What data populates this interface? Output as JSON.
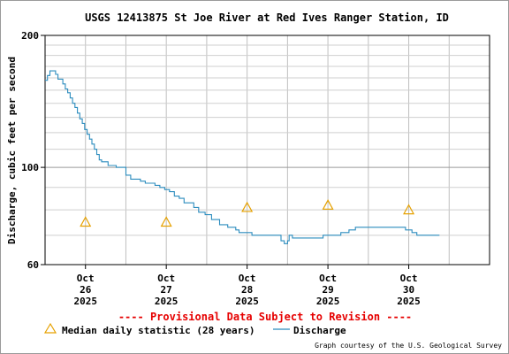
{
  "chart_data": {
    "type": "line",
    "title": "USGS 12413875 St Joe River at Red Ives Ranger Station, ID",
    "ylabel": "Discharge, cubic feet per second",
    "y_scale": "log",
    "ylim": [
      60,
      200
    ],
    "y_ticks": [
      {
        "value": 60,
        "label": "60"
      },
      {
        "value": 100,
        "label": "100"
      },
      {
        "value": 200,
        "label": "200"
      }
    ],
    "y_minor": [
      70,
      80,
      90,
      110,
      120,
      130,
      140,
      150,
      160,
      170,
      180,
      190
    ],
    "xlim": [
      25.5,
      31.0
    ],
    "x_ticks": [
      {
        "value": 26,
        "lines": [
          "Oct",
          "26",
          "2025"
        ]
      },
      {
        "value": 27,
        "lines": [
          "Oct",
          "27",
          "2025"
        ]
      },
      {
        "value": 28,
        "lines": [
          "Oct",
          "28",
          "2025"
        ]
      },
      {
        "value": 29,
        "lines": [
          "Oct",
          "29",
          "2025"
        ]
      },
      {
        "value": 30,
        "lines": [
          "Oct",
          "30",
          "2025"
        ]
      }
    ],
    "x_grid": [
      26,
      26.5,
      27,
      27.5,
      28,
      28.5,
      29,
      29.5,
      30,
      30.5
    ],
    "series": [
      {
        "name": "Discharge",
        "color": "#2b8cbe",
        "points": [
          [
            25.5,
            158
          ],
          [
            25.53,
            162
          ],
          [
            25.56,
            166
          ],
          [
            25.6,
            166
          ],
          [
            25.63,
            163
          ],
          [
            25.66,
            159
          ],
          [
            25.69,
            159
          ],
          [
            25.72,
            155
          ],
          [
            25.75,
            151
          ],
          [
            25.78,
            148
          ],
          [
            25.81,
            144
          ],
          [
            25.84,
            140
          ],
          [
            25.87,
            137
          ],
          [
            25.9,
            133
          ],
          [
            25.93,
            129
          ],
          [
            25.96,
            126
          ],
          [
            25.99,
            122
          ],
          [
            26.02,
            119
          ],
          [
            26.05,
            116
          ],
          [
            26.08,
            113
          ],
          [
            26.11,
            110
          ],
          [
            26.14,
            107
          ],
          [
            26.17,
            104
          ],
          [
            26.2,
            103
          ],
          [
            26.24,
            103
          ],
          [
            26.28,
            101
          ],
          [
            26.32,
            101
          ],
          [
            26.38,
            100
          ],
          [
            26.44,
            100
          ],
          [
            26.5,
            96
          ],
          [
            26.56,
            94
          ],
          [
            26.62,
            94
          ],
          [
            26.68,
            93
          ],
          [
            26.74,
            92
          ],
          [
            26.8,
            92
          ],
          [
            26.86,
            91
          ],
          [
            26.92,
            90
          ],
          [
            26.98,
            89
          ],
          [
            27.04,
            88
          ],
          [
            27.1,
            86
          ],
          [
            27.16,
            85
          ],
          [
            27.22,
            83
          ],
          [
            27.28,
            83
          ],
          [
            27.34,
            81
          ],
          [
            27.4,
            79
          ],
          [
            27.48,
            78
          ],
          [
            27.56,
            76
          ],
          [
            27.66,
            74
          ],
          [
            27.76,
            73
          ],
          [
            27.86,
            72
          ],
          [
            27.9,
            71
          ],
          [
            27.96,
            71
          ],
          [
            28.06,
            70
          ],
          [
            28.2,
            70
          ],
          [
            28.34,
            70
          ],
          [
            28.42,
            68
          ],
          [
            28.46,
            67
          ],
          [
            28.5,
            68
          ],
          [
            28.52,
            70
          ],
          [
            28.56,
            69
          ],
          [
            28.62,
            69
          ],
          [
            28.8,
            69
          ],
          [
            28.9,
            69
          ],
          [
            28.94,
            70
          ],
          [
            29.0,
            70
          ],
          [
            29.1,
            70
          ],
          [
            29.16,
            71
          ],
          [
            29.26,
            72
          ],
          [
            29.34,
            73
          ],
          [
            29.5,
            73
          ],
          [
            29.7,
            73
          ],
          [
            29.8,
            73
          ],
          [
            29.92,
            73
          ],
          [
            29.96,
            72
          ],
          [
            30.04,
            71
          ],
          [
            30.1,
            70
          ],
          [
            30.22,
            70
          ],
          [
            30.38,
            70
          ]
        ]
      },
      {
        "name": "Median daily statistic (28 years)",
        "marker": "triangle",
        "color": "#e6a100",
        "points": [
          [
            26.0,
            75
          ],
          [
            27.0,
            75
          ],
          [
            28.0,
            81
          ],
          [
            29.0,
            82
          ],
          [
            30.0,
            80
          ]
        ]
      }
    ],
    "annotations": [
      "---- Provisional Data Subject to Revision ----"
    ],
    "legend": {
      "placement": "bottom",
      "entries": [
        {
          "label": "Median daily statistic (28 years)",
          "symbol": "triangle"
        },
        {
          "label": "Discharge",
          "symbol": "line"
        }
      ]
    },
    "grid": true
  },
  "credit": "Graph courtesy of the U.S. Geological Survey"
}
